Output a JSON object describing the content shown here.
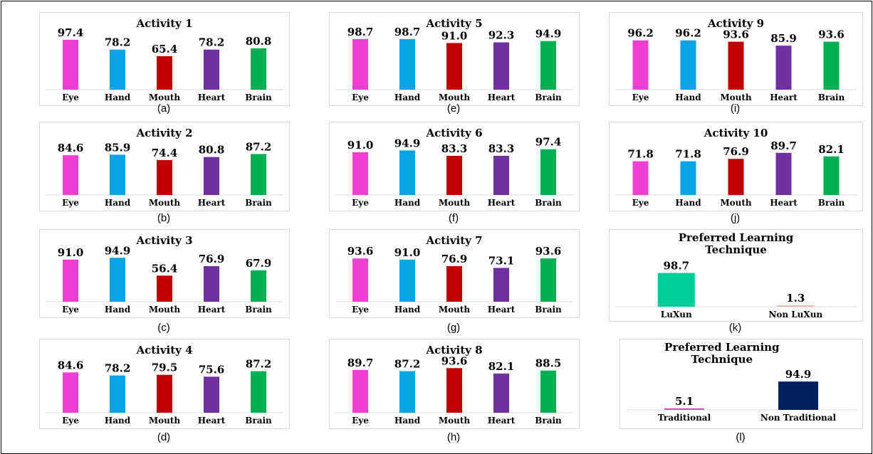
{
  "chart_data": [
    {
      "type": "bar",
      "title": "Activity 1",
      "categories": [
        "Eye",
        "Hand",
        "Mouth",
        "Heart",
        "Brain"
      ],
      "values": [
        97.4,
        78.2,
        65.4,
        78.2,
        80.8
      ],
      "caption": "(a)"
    },
    {
      "type": "bar",
      "title": "Activity 2",
      "categories": [
        "Eye",
        "Hand",
        "Mouth",
        "Heart",
        "Brain"
      ],
      "values": [
        84.6,
        85.9,
        74.4,
        80.8,
        87.2
      ],
      "caption": "(b)"
    },
    {
      "type": "bar",
      "title": "Activity 3",
      "categories": [
        "Eye",
        "Hand",
        "Mouth",
        "Heart",
        "Brain"
      ],
      "values": [
        91.0,
        94.9,
        56.4,
        76.9,
        67.9
      ],
      "caption": "(c)"
    },
    {
      "type": "bar",
      "title": "Activity 4",
      "categories": [
        "Eye",
        "Hand",
        "Mouth",
        "Heart",
        "Brain"
      ],
      "values": [
        84.6,
        78.2,
        79.5,
        75.6,
        87.2
      ],
      "caption": "(d)"
    },
    {
      "type": "bar",
      "title": "Activity 5",
      "categories": [
        "Eye",
        "Hand",
        "Mouth",
        "Heart",
        "Brain"
      ],
      "values": [
        98.7,
        98.7,
        91.0,
        92.3,
        94.9
      ],
      "caption": "(e)"
    },
    {
      "type": "bar",
      "title": "Activity 6",
      "categories": [
        "Eye",
        "Hand",
        "Mouth",
        "Heart",
        "Brain"
      ],
      "values": [
        91.0,
        94.9,
        83.3,
        83.3,
        97.4
      ],
      "caption": "(f)"
    },
    {
      "type": "bar",
      "title": "Activity 7",
      "categories": [
        "Eye",
        "Hand",
        "Mouth",
        "Heart",
        "Brain"
      ],
      "values": [
        93.6,
        91.0,
        76.9,
        73.1,
        93.6
      ],
      "caption": "(g)"
    },
    {
      "type": "bar",
      "title": "Activity 8",
      "categories": [
        "Eye",
        "Hand",
        "Mouth",
        "Heart",
        "Brain"
      ],
      "values": [
        89.7,
        87.2,
        93.6,
        82.1,
        88.5
      ],
      "caption": "(h)"
    },
    {
      "type": "bar",
      "title": "Activity 9",
      "categories": [
        "Eye",
        "Hand",
        "Mouth",
        "Heart",
        "Brain"
      ],
      "values": [
        96.2,
        96.2,
        93.6,
        85.9,
        93.6
      ],
      "caption": "(i)"
    },
    {
      "type": "bar",
      "title": "Activity 10",
      "categories": [
        "Eye",
        "Hand",
        "Mouth",
        "Heart",
        "Brain"
      ],
      "values": [
        71.8,
        71.8,
        76.9,
        89.7,
        82.1
      ],
      "caption": "(j)"
    },
    {
      "type": "bar",
      "title": "Preferred Learning Technique",
      "categories": [
        "LuXun",
        "Non LuXun"
      ],
      "values": [
        98.7,
        1.3
      ],
      "caption": "(k)"
    },
    {
      "type": "bar",
      "title": "Preferred Learning Technique",
      "categories": [
        "Traditional",
        "Non Traditional"
      ],
      "values": [
        5.1,
        94.9
      ],
      "caption": "(l)"
    }
  ],
  "colors": {
    "five": [
      "#ef3fd2",
      "#0aa4e6",
      "#c00000",
      "#7030a0",
      "#00b050"
    ],
    "k": [
      "#00cc99",
      "#f4b8a4"
    ],
    "l": [
      "#ef3fd2",
      "#002060"
    ],
    "axis": "#d9d9d9"
  }
}
